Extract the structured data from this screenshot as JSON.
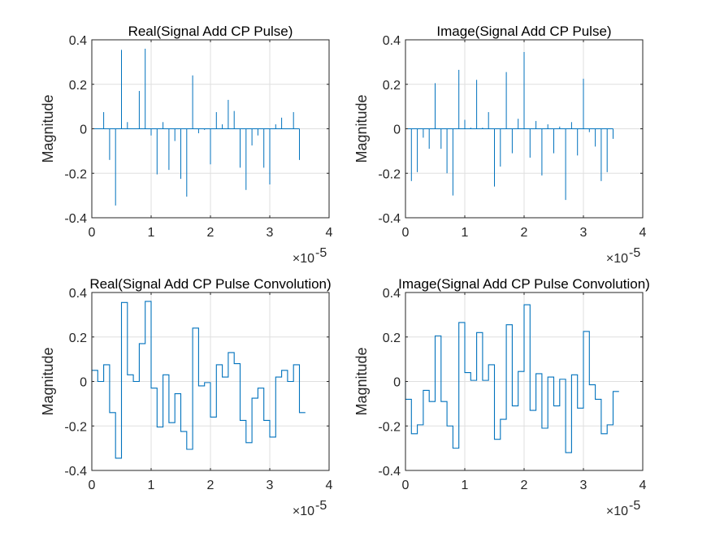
{
  "chart_data": [
    {
      "type": "stem",
      "title": "Real(Signal Add CP Pulse)",
      "xlabel": "",
      "ylabel": "Magnitude",
      "xlim": [
        0,
        4e-05
      ],
      "ylim": [
        -0.4,
        0.4
      ],
      "xticks": [
        0,
        1,
        2,
        3,
        4
      ],
      "yticks": [
        "-0.4",
        "-0.2",
        "0",
        "0.2",
        "0.4"
      ],
      "x_exponent": "×10",
      "x_exponent_power": "-5",
      "grid": true,
      "x_step": 1e-06,
      "values": [
        0.05,
        0,
        0.075,
        -0.14,
        -0.345,
        0.355,
        0.03,
        0,
        0.17,
        0.36,
        -0.03,
        -0.205,
        0.03,
        -0.185,
        -0.055,
        -0.225,
        -0.305,
        0.24,
        -0.02,
        -0.005,
        -0.16,
        0.075,
        0.02,
        0.13,
        0.08,
        -0.175,
        -0.275,
        -0.075,
        -0.03,
        -0.175,
        -0.25,
        0.02,
        0.05,
        0,
        0.075,
        -0.14
      ]
    },
    {
      "type": "stem",
      "title": "Image(Signal Add CP Pulse)",
      "xlabel": "",
      "ylabel": "Magnitude",
      "xlim": [
        0,
        4e-05
      ],
      "ylim": [
        -0.4,
        0.4
      ],
      "xticks": [
        0,
        1,
        2,
        3,
        4
      ],
      "yticks": [
        "-0.4",
        "-0.2",
        "0",
        "0.2",
        "0.4"
      ],
      "x_exponent": "×10",
      "x_exponent_power": "-5",
      "grid": true,
      "x_step": 1e-06,
      "values": [
        -0.08,
        -0.235,
        -0.195,
        -0.04,
        -0.09,
        0.205,
        -0.09,
        -0.2,
        -0.3,
        0.265,
        0.04,
        0.005,
        0.22,
        0.005,
        0.075,
        -0.26,
        -0.17,
        0.255,
        -0.11,
        0.045,
        0.345,
        -0.13,
        0.035,
        -0.21,
        0.02,
        -0.11,
        0.01,
        -0.32,
        0.03,
        -0.12,
        0.225,
        -0.015,
        -0.08,
        -0.235,
        -0.195,
        -0.045
      ]
    },
    {
      "type": "line",
      "title": "Real(Signal Add CP Pulse Convolution)",
      "xlabel": "",
      "ylabel": "Magnitude",
      "xlim": [
        0,
        4e-05
      ],
      "ylim": [
        -0.4,
        0.4
      ],
      "xticks": [
        0,
        1,
        2,
        3,
        4
      ],
      "yticks": [
        "-0.4",
        "-0.2",
        "0",
        "0.2",
        "0.4"
      ],
      "x_exponent": "×10",
      "x_exponent_power": "-5",
      "grid": true,
      "x_step": 1e-06,
      "values": [
        0.05,
        0,
        0.075,
        -0.14,
        -0.345,
        0.355,
        0.03,
        0,
        0.17,
        0.36,
        -0.03,
        -0.205,
        0.03,
        -0.185,
        -0.055,
        -0.225,
        -0.305,
        0.24,
        -0.02,
        -0.005,
        -0.16,
        0.075,
        0.02,
        0.13,
        0.08,
        -0.175,
        -0.275,
        -0.075,
        -0.03,
        -0.175,
        -0.25,
        0.02,
        0.05,
        0,
        0.075,
        -0.14
      ]
    },
    {
      "type": "line",
      "title": "Image(Signal Add CP Pulse Convolution)",
      "xlabel": "",
      "ylabel": "Magnitude",
      "xlim": [
        0,
        4e-05
      ],
      "ylim": [
        -0.4,
        0.4
      ],
      "xticks": [
        0,
        1,
        2,
        3,
        4
      ],
      "yticks": [
        "-0.4",
        "-0.2",
        "0",
        "0.2",
        "0.4"
      ],
      "x_exponent": "×10",
      "x_exponent_power": "-5",
      "grid": true,
      "x_step": 1e-06,
      "values": [
        -0.08,
        -0.235,
        -0.195,
        -0.04,
        -0.09,
        0.205,
        -0.09,
        -0.2,
        -0.3,
        0.265,
        0.04,
        0.005,
        0.22,
        0.005,
        0.075,
        -0.26,
        -0.17,
        0.255,
        -0.11,
        0.045,
        0.345,
        -0.13,
        0.035,
        -0.21,
        0.02,
        -0.11,
        0.01,
        -0.32,
        0.03,
        -0.12,
        0.225,
        -0.015,
        -0.08,
        -0.235,
        -0.195,
        -0.045
      ]
    }
  ],
  "colors": {
    "series": "#0072BD",
    "grid": "#DFDFDF",
    "axis": "#262626"
  }
}
